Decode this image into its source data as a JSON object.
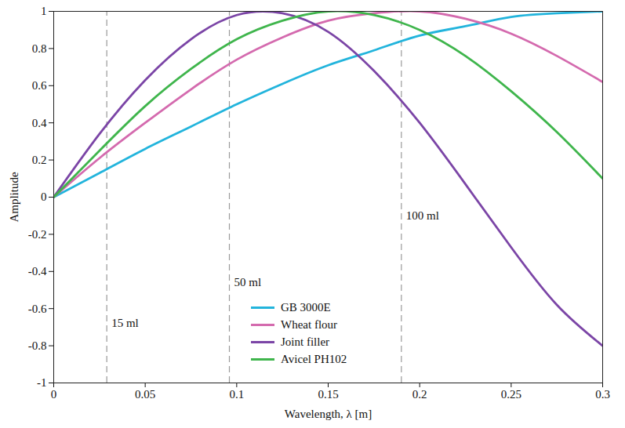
{
  "chart_data": {
    "type": "line",
    "xlabel": "Wavelength, λ [m]",
    "ylabel": "Amplitude",
    "x": [
      0,
      0.025,
      0.05,
      0.075,
      0.1,
      0.125,
      0.15,
      0.175,
      0.2,
      0.225,
      0.25,
      0.275,
      0.3
    ],
    "series": [
      {
        "name": "GB 3000E",
        "color": "#22b4dc",
        "values": [
          0,
          0.13,
          0.26,
          0.38,
          0.5,
          0.61,
          0.71,
          0.79,
          0.87,
          0.92,
          0.97,
          0.99,
          1.0
        ]
      },
      {
        "name": "Wheat flour",
        "color": "#d46aae",
        "values": [
          0,
          0.21,
          0.4,
          0.58,
          0.74,
          0.86,
          0.95,
          0.99,
          1.0,
          0.96,
          0.88,
          0.76,
          0.62
        ]
      },
      {
        "name": "Joint filler",
        "color": "#7b45a6",
        "values": [
          0,
          0.34,
          0.63,
          0.85,
          0.98,
          0.99,
          0.89,
          0.68,
          0.4,
          0.07,
          -0.27,
          -0.58,
          -0.8
        ]
      },
      {
        "name": "Avicel PH102",
        "color": "#3fb54c",
        "values": [
          0,
          0.25,
          0.49,
          0.69,
          0.85,
          0.95,
          1.0,
          0.98,
          0.9,
          0.76,
          0.57,
          0.35,
          0.1
        ]
      }
    ],
    "vlines": [
      {
        "x": 0.029,
        "label": "15 ml"
      },
      {
        "x": 0.096,
        "label": "50 ml"
      },
      {
        "x": 0.19,
        "label": "100 ml"
      }
    ],
    "xlim": [
      0,
      0.3
    ],
    "xticks": [
      0,
      0.05,
      0.1,
      0.15,
      0.2,
      0.25,
      0.3
    ],
    "ylim": [
      -1,
      1
    ],
    "yticks": [
      -1,
      -0.8,
      -0.6,
      -0.4,
      -0.2,
      0,
      0.2,
      0.4,
      0.6,
      0.8,
      1
    ],
    "grid": false,
    "legend": "bottom"
  }
}
